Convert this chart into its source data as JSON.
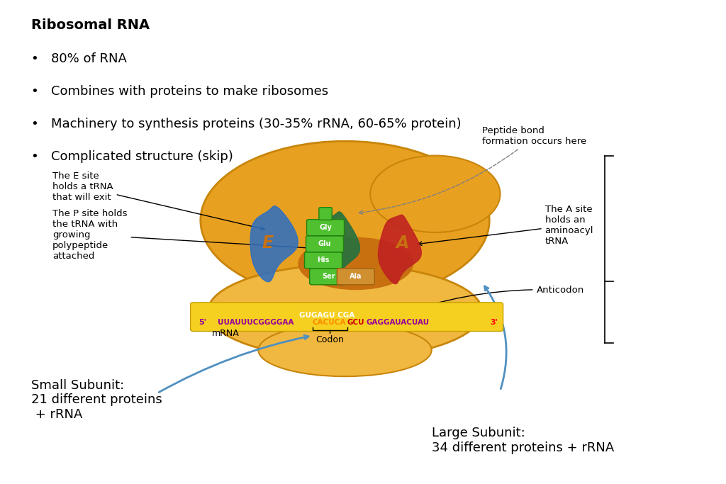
{
  "title": "Ribosomal RNA",
  "bullets": [
    "80% of RNA",
    "Combines with proteins to make ribosomes",
    "Machinery to synthesis proteins (30-35% rRNA, 60-65% protein)",
    "Complicated structure (skip)"
  ],
  "small_subunit_text": "Small Subunit:\n21 different proteins\n + rRNA",
  "large_subunit_text": "Large Subunit:\n34 different proteins + rRNA",
  "background_color": "#ffffff",
  "title_fontsize": 14,
  "bullet_fontsize": 13,
  "annotation_fontsize": 9.5,
  "subunit_fontsize": 13,
  "gold": "#E8A020",
  "gold_dark": "#C8850A",
  "gold_light": "#F0B840",
  "gold_groove": "#C87010",
  "blue_trna": "#3070C0",
  "green_trna": "#207040",
  "red_trna": "#C02020",
  "green_peptide": "#50C030",
  "green_peptide_edge": "#208010",
  "tan_ala": "#D09030",
  "tan_ala_edge": "#A06010",
  "mrna_bg": "#F5D020",
  "mrna_border": "#C8A000",
  "purple": "#990099",
  "orange": "#FF8C00",
  "red_seq": "#CC0000",
  "arrow_blue": "#5090C0",
  "site_label_color": "#C87010"
}
